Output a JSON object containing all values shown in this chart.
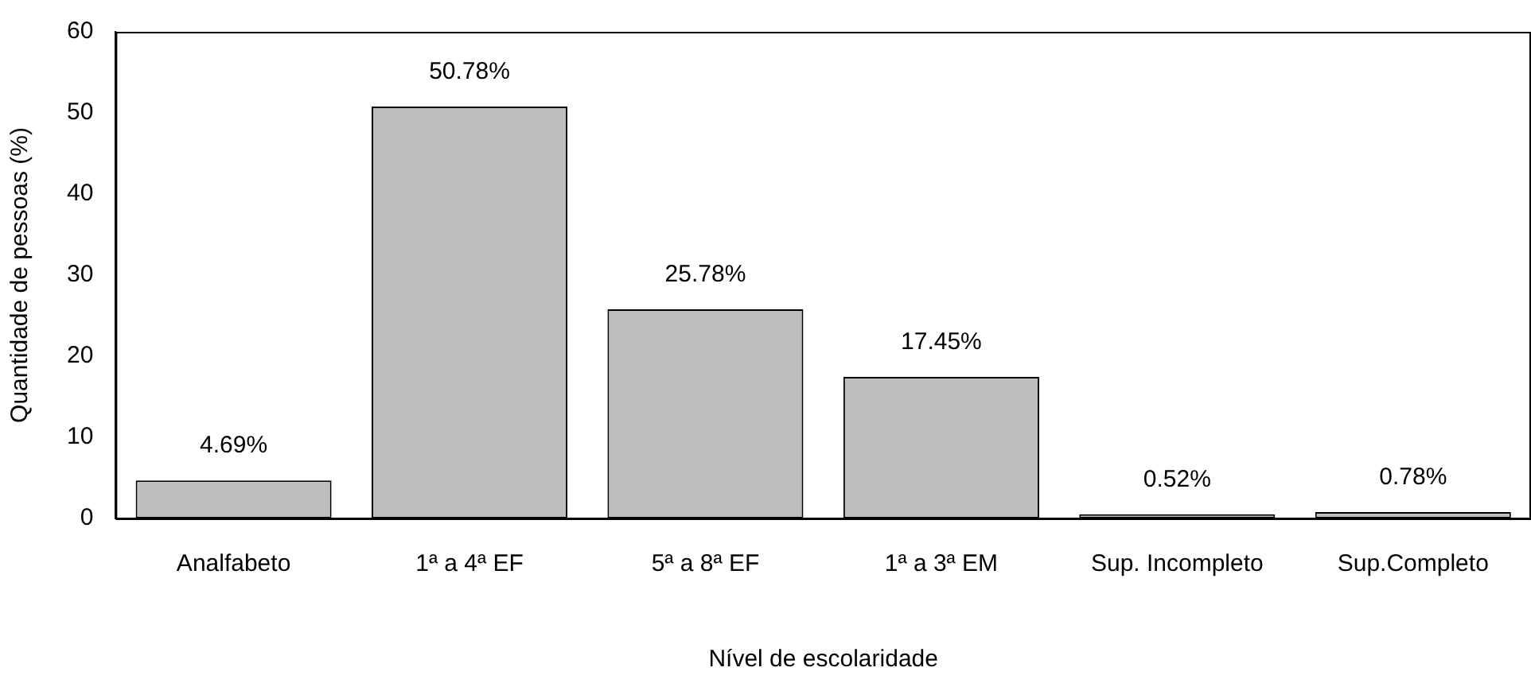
{
  "chart_data": {
    "type": "bar",
    "xlabel": "Nível de escolaridade",
    "ylabel": "Quantidade de pessoas (%)",
    "categories": [
      "Analfabeto",
      "1ª a 4ª EF",
      "5ª a 8ª EF",
      "1ª a 3ª EM",
      "Sup. Incompleto",
      "Sup.Completo"
    ],
    "values": [
      4.69,
      50.78,
      25.78,
      17.45,
      0.52,
      0.78
    ],
    "value_labels": [
      "4.69%",
      "50.78%",
      "25.78%",
      "17.45%",
      "0.52%",
      "0.78%"
    ],
    "color": "#bebebe",
    "ylim": [
      0,
      60
    ],
    "yticks": [
      0,
      10,
      20,
      30,
      40,
      50,
      60
    ],
    "grid": false,
    "legend": false
  }
}
